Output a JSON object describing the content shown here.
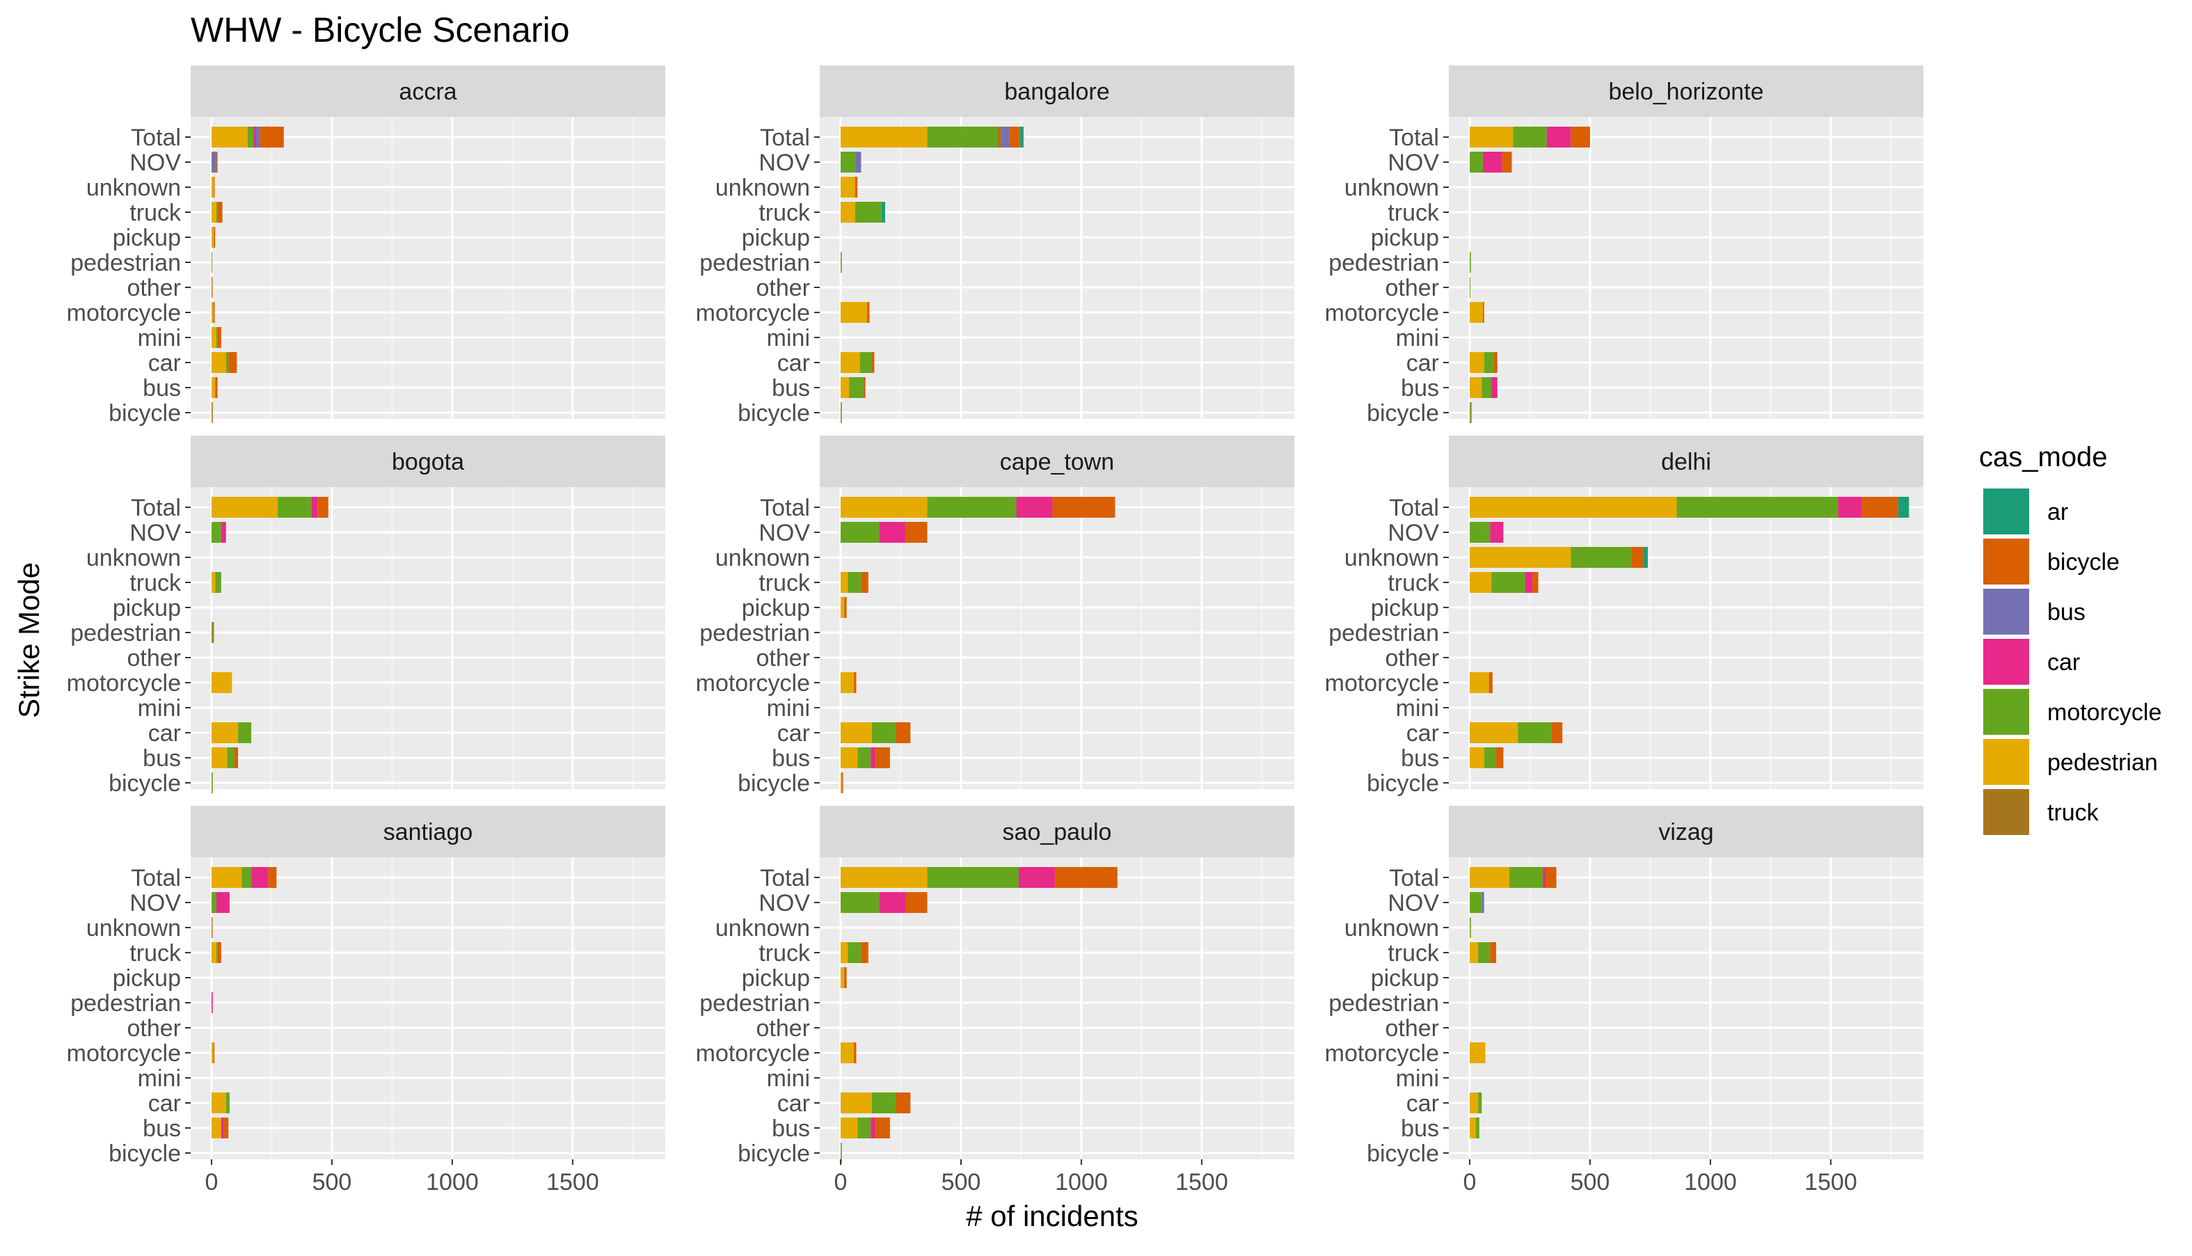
{
  "chart_data": {
    "type": "bar",
    "orientation": "horizontal",
    "stacked": true,
    "title": "WHW -  Bicycle Scenario",
    "xlabel": "# of incidents",
    "ylabel": "Strike Mode",
    "xlim": [
      0,
      1850
    ],
    "x_ticks": [
      0,
      500,
      1000,
      1500
    ],
    "grid": true,
    "legend_position": "right",
    "legend_title": "cas_mode",
    "legend": [
      {
        "name": "ar",
        "color": "#1B9E77"
      },
      {
        "name": "bicycle",
        "color": "#D95F02"
      },
      {
        "name": "bus",
        "color": "#7570B3"
      },
      {
        "name": "car",
        "color": "#E7298A"
      },
      {
        "name": "motorcycle",
        "color": "#66A61E"
      },
      {
        "name": "pedestrian",
        "color": "#E6AB02"
      },
      {
        "name": "truck",
        "color": "#A6761D"
      }
    ],
    "stack_order": [
      "pedestrian",
      "motorcycle",
      "truck",
      "car",
      "bus",
      "bicycle",
      "ar"
    ],
    "categories": [
      "Total",
      "NOV",
      "unknown",
      "truck",
      "pickup",
      "pedestrian",
      "other",
      "motorcycle",
      "mini",
      "car",
      "bus",
      "bicycle"
    ],
    "facets": [
      {
        "name": "accra",
        "bars": {
          "Total": {
            "pedestrian": 150,
            "motorcycle": 25,
            "car": 10,
            "bus": 15,
            "bicycle": 100
          },
          "NOV": {
            "bus": 20,
            "bicycle": 5
          },
          "unknown": {
            "pedestrian": 10,
            "bicycle": 3
          },
          "truck": {
            "pedestrian": 20,
            "motorcycle": 5,
            "bicycle": 20
          },
          "pickup": {
            "pedestrian": 10,
            "bicycle": 5
          },
          "pedestrian": {
            "motorcycle": 3
          },
          "other": {
            "bicycle": 4
          },
          "motorcycle": {
            "pedestrian": 8,
            "bicycle": 5
          },
          "mini": {
            "pedestrian": 20,
            "motorcycle": 5,
            "bicycle": 15
          },
          "car": {
            "pedestrian": 60,
            "motorcycle": 10,
            "bicycle": 35
          },
          "bus": {
            "pedestrian": 15,
            "bicycle": 10
          },
          "bicycle": {
            "motorcycle": 2,
            "bicycle": 2
          }
        }
      },
      {
        "name": "bangalore",
        "bars": {
          "Total": {
            "pedestrian": 360,
            "motorcycle": 290,
            "truck": 20,
            "bus": 30,
            "bicycle": 45,
            "ar": 15
          },
          "NOV": {
            "motorcycle": 60,
            "bus": 25
          },
          "unknown": {
            "pedestrian": 60,
            "bicycle": 10
          },
          "truck": {
            "pedestrian": 60,
            "motorcycle": 110,
            "ar": 15
          },
          "pickup": {},
          "pedestrian": {
            "motorcycle": 5
          },
          "other": {},
          "motorcycle": {
            "pedestrian": 110,
            "bicycle": 10
          },
          "mini": {},
          "car": {
            "pedestrian": 80,
            "motorcycle": 50,
            "bicycle": 10
          },
          "bus": {
            "pedestrian": 35,
            "motorcycle": 60,
            "bicycle": 8
          },
          "bicycle": {
            "motorcycle": 5
          }
        }
      },
      {
        "name": "belo_horizonte",
        "bars": {
          "Total": {
            "pedestrian": 180,
            "motorcycle": 140,
            "car": 100,
            "bicycle": 80
          },
          "NOV": {
            "motorcycle": 55,
            "car": 80,
            "bicycle": 40
          },
          "unknown": {},
          "truck": {},
          "pickup": {},
          "pedestrian": {
            "motorcycle": 5
          },
          "other": {
            "motorcycle": 3
          },
          "motorcycle": {
            "pedestrian": 55,
            "bicycle": 5
          },
          "mini": {},
          "car": {
            "pedestrian": 60,
            "motorcycle": 40,
            "bicycle": 15
          },
          "bus": {
            "pedestrian": 50,
            "motorcycle": 40,
            "car": 25
          },
          "bicycle": {
            "motorcycle": 5,
            "bicycle": 3
          }
        }
      },
      {
        "name": "bogota",
        "bars": {
          "Total": {
            "pedestrian": 275,
            "motorcycle": 140,
            "car": 25,
            "bicycle": 45
          },
          "NOV": {
            "motorcycle": 40,
            "car": 20
          },
          "unknown": {},
          "truck": {
            "pedestrian": 15,
            "motorcycle": 25
          },
          "pickup": {},
          "pedestrian": {
            "motorcycle": 5,
            "bicycle": 5
          },
          "other": {},
          "motorcycle": {
            "pedestrian": 85
          },
          "mini": {},
          "car": {
            "pedestrian": 110,
            "motorcycle": 55
          },
          "bus": {
            "pedestrian": 65,
            "motorcycle": 30,
            "bicycle": 15
          },
          "bicycle": {
            "motorcycle": 5
          }
        }
      },
      {
        "name": "cape_town",
        "bars": {
          "Total": {
            "pedestrian": 360,
            "motorcycle": 370,
            "car": 150,
            "bicycle": 260
          },
          "NOV": {
            "motorcycle": 160,
            "car": 110,
            "bicycle": 90
          },
          "unknown": {},
          "truck": {
            "pedestrian": 30,
            "motorcycle": 55,
            "bicycle": 30
          },
          "pickup": {
            "pedestrian": 15,
            "bicycle": 10
          },
          "pedestrian": {},
          "other": {},
          "motorcycle": {
            "pedestrian": 55,
            "bicycle": 10
          },
          "mini": {},
          "car": {
            "pedestrian": 130,
            "motorcycle": 100,
            "bicycle": 60
          },
          "bus": {
            "pedestrian": 70,
            "motorcycle": 55,
            "car": 20,
            "bicycle": 60
          },
          "bicycle": {
            "pedestrian": 5,
            "bicycle": 5
          }
        }
      },
      {
        "name": "delhi",
        "bars": {
          "Total": {
            "pedestrian": 860,
            "motorcycle": 670,
            "car": 100,
            "bicycle": 150,
            "ar": 45
          },
          "NOV": {
            "motorcycle": 85,
            "car": 55
          },
          "unknown": {
            "pedestrian": 420,
            "motorcycle": 250,
            "bicycle": 50,
            "ar": 20
          },
          "truck": {
            "pedestrian": 90,
            "motorcycle": 140,
            "car": 30,
            "bicycle": 25
          },
          "pickup": {},
          "pedestrian": {},
          "other": {},
          "motorcycle": {
            "pedestrian": 80,
            "bicycle": 15
          },
          "mini": {},
          "car": {
            "pedestrian": 200,
            "motorcycle": 140,
            "bicycle": 45
          },
          "bus": {
            "pedestrian": 60,
            "motorcycle": 50,
            "bicycle": 30
          },
          "bicycle": {}
        }
      },
      {
        "name": "santiago",
        "bars": {
          "Total": {
            "pedestrian": 125,
            "motorcycle": 40,
            "car": 70,
            "bicycle": 35
          },
          "NOV": {
            "motorcycle": 20,
            "car": 55
          },
          "unknown": {
            "bicycle": 4
          },
          "truck": {
            "pedestrian": 20,
            "motorcycle": 5,
            "bicycle": 15
          },
          "pickup": {},
          "pedestrian": {
            "car": 5
          },
          "other": {},
          "motorcycle": {
            "pedestrian": 8,
            "bicycle": 4
          },
          "mini": {},
          "car": {
            "pedestrian": 60,
            "motorcycle": 15
          },
          "bus": {
            "pedestrian": 40,
            "car": 10,
            "bicycle": 20
          },
          "bicycle": {}
        }
      },
      {
        "name": "sao_paulo",
        "bars": {
          "Total": {
            "pedestrian": 360,
            "motorcycle": 380,
            "car": 150,
            "bicycle": 260
          },
          "NOV": {
            "motorcycle": 160,
            "car": 110,
            "bicycle": 90
          },
          "unknown": {},
          "truck": {
            "pedestrian": 30,
            "motorcycle": 55,
            "bicycle": 30
          },
          "pickup": {
            "pedestrian": 15,
            "bicycle": 10
          },
          "pedestrian": {},
          "other": {},
          "motorcycle": {
            "pedestrian": 55,
            "bicycle": 10
          },
          "mini": {},
          "car": {
            "pedestrian": 130,
            "motorcycle": 100,
            "bicycle": 60
          },
          "bus": {
            "pedestrian": 70,
            "motorcycle": 55,
            "car": 20,
            "bicycle": 60
          },
          "bicycle": {
            "motorcycle": 5
          }
        }
      },
      {
        "name": "vizag",
        "bars": {
          "Total": {
            "pedestrian": 165,
            "motorcycle": 140,
            "car": 10,
            "bicycle": 45
          },
          "NOV": {
            "motorcycle": 50,
            "bus": 10
          },
          "unknown": {
            "motorcycle": 5
          },
          "truck": {
            "pedestrian": 35,
            "motorcycle": 50,
            "bicycle": 25
          },
          "pickup": {},
          "pedestrian": {},
          "other": {},
          "motorcycle": {
            "pedestrian": 65
          },
          "mini": {},
          "car": {
            "pedestrian": 35,
            "motorcycle": 15
          },
          "bus": {
            "pedestrian": 25,
            "motorcycle": 15
          },
          "bicycle": {}
        }
      }
    ]
  }
}
